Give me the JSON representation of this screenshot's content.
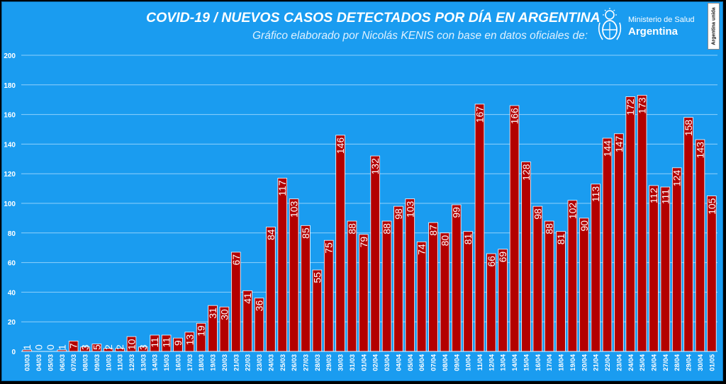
{
  "header": {
    "title": "COVID-19  /  NUEVOS CASOS DETECTADOS POR DÍA EN ARGENTINA",
    "subtitle": "Gráfico elaborado por Nicolás KENIS con base en datos oficiales de:"
  },
  "logo": {
    "ministry": "Ministerio de Salud",
    "country": "Argentina",
    "emblem_icon": "coat-of-arms-icon"
  },
  "badge": {
    "text": "Argentina unida"
  },
  "colors": {
    "background": "#1a9cf0",
    "bar_fill": "#b30000",
    "bar_stroke": "#ffffff",
    "gridline": "#8fd0fb",
    "text": "#ffffff"
  },
  "chart_data": {
    "type": "bar",
    "title": "COVID-19  /  NUEVOS CASOS DETECTADOS POR DÍA EN ARGENTINA",
    "xlabel": "",
    "ylabel": "",
    "ylim": [
      0,
      200
    ],
    "yticks": [
      0,
      20,
      40,
      60,
      80,
      100,
      120,
      140,
      160,
      180,
      200
    ],
    "grid": true,
    "legend": "none",
    "categories": [
      "03/03",
      "04/03",
      "05/03",
      "06/03",
      "07/03",
      "08/03",
      "09/03",
      "10/03",
      "11/03",
      "12/03",
      "13/03",
      "14/03",
      "15/03",
      "16/03",
      "17/03",
      "18/03",
      "19/03",
      "20/03",
      "21/03",
      "22/03",
      "23/03",
      "24/03",
      "25/03",
      "26/03",
      "27/03",
      "28/03",
      "29/03",
      "30/03",
      "31/03",
      "01/04",
      "02/04",
      "03/04",
      "04/04",
      "05/04",
      "06/04",
      "07/04",
      "08/04",
      "09/04",
      "10/04",
      "11/04",
      "12/04",
      "13/04",
      "14/04",
      "15/04",
      "16/04",
      "17/04",
      "18/04",
      "19/04",
      "20/04",
      "21/04",
      "22/04",
      "23/04",
      "24/04",
      "25/04",
      "26/04",
      "27/04",
      "28/04",
      "29/04",
      "30/04",
      "01/05"
    ],
    "values": [
      1,
      0,
      0,
      1,
      7,
      3,
      5,
      2,
      2,
      10,
      3,
      11,
      11,
      9,
      13,
      19,
      31,
      30,
      67,
      41,
      36,
      84,
      117,
      103,
      85,
      55,
      75,
      146,
      88,
      79,
      132,
      88,
      98,
      103,
      74,
      87,
      80,
      99,
      81,
      167,
      66,
      69,
      166,
      128,
      98,
      88,
      81,
      102,
      90,
      113,
      144,
      147,
      172,
      173,
      112,
      111,
      124,
      158,
      143,
      105
    ]
  }
}
